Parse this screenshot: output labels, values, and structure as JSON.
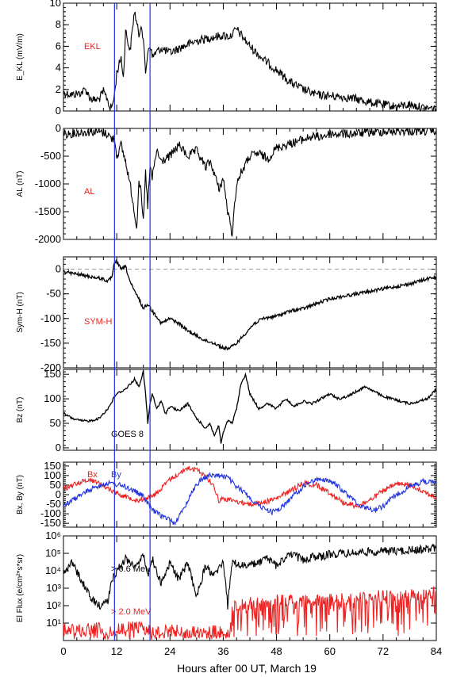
{
  "xaxis": {
    "label": "Hours after 00 UT, March 19",
    "range": [
      0,
      84
    ],
    "ticks": [
      0,
      12,
      24,
      36,
      48,
      60,
      72,
      84
    ],
    "tick_labels": [
      "0",
      "12",
      "24",
      "36",
      "48",
      "60",
      "72",
      "84"
    ]
  },
  "event_lines": {
    "hours": [
      11.5,
      19.5
    ],
    "color": "#2233dd"
  },
  "chart_data": [
    {
      "type": "line",
      "ylabel": "E_KL (mV/m)",
      "ylim": [
        0,
        10
      ],
      "yticks": [
        0,
        2,
        4,
        6,
        8,
        10
      ],
      "annotation": {
        "text": "EKL",
        "color": "#ee2222"
      },
      "series": [
        {
          "color": "#000000",
          "style": "noisy",
          "x": [
            0,
            2,
            4,
            5,
            6,
            7,
            8,
            9,
            10,
            10.5,
            11,
            11.5,
            12,
            13,
            13.5,
            14,
            15,
            16,
            17,
            17.5,
            18,
            18.5,
            19,
            19.5,
            20,
            21,
            22,
            24,
            27,
            30,
            33,
            36,
            37.5,
            39,
            40.5,
            42,
            45,
            48,
            51,
            54,
            57,
            60,
            63,
            66,
            69,
            72,
            75,
            78,
            81,
            84
          ],
          "y": [
            1.7,
            1.5,
            1.7,
            2.0,
            1.2,
            1.0,
            1.1,
            1.8,
            1.0,
            0.2,
            0.5,
            1.5,
            3.5,
            5.0,
            3.0,
            7.5,
            5.5,
            9.3,
            7.0,
            8.2,
            6.5,
            3.5,
            5.5,
            6.2,
            5.0,
            5.5,
            5.8,
            5.4,
            6.0,
            6.5,
            6.8,
            7.0,
            6.9,
            7.6,
            6.8,
            6.0,
            4.8,
            3.8,
            2.7,
            2.0,
            1.5,
            1.4,
            1.3,
            1.1,
            0.8,
            0.6,
            0.4,
            0.6,
            0.3,
            0.2
          ]
        }
      ]
    },
    {
      "type": "line",
      "ylabel": "AL (nT)",
      "ylim": [
        -2000,
        0
      ],
      "yticks": [
        -2000,
        -1500,
        -1000,
        -500,
        0
      ],
      "annotation": {
        "text": "AL",
        "color": "#ee2222"
      },
      "series": [
        {
          "color": "#000000",
          "style": "noisy",
          "x": [
            0,
            3,
            6,
            8,
            10,
            11,
            11.5,
            12,
            13,
            14,
            15,
            16,
            16.5,
            17,
            17.5,
            18,
            18.5,
            19,
            19.5,
            20,
            21,
            22,
            24,
            26,
            28,
            30,
            32,
            33,
            34,
            35,
            36,
            37,
            38,
            39,
            40,
            42,
            44,
            46,
            48,
            50,
            52,
            54,
            56,
            58,
            60,
            64,
            68,
            72,
            76,
            80,
            84
          ],
          "y": [
            -100,
            -80,
            -60,
            -60,
            -100,
            -200,
            -150,
            -500,
            -300,
            -600,
            -1000,
            -1500,
            -1800,
            -900,
            -1200,
            -1700,
            -800,
            -1400,
            -700,
            -900,
            -400,
            -600,
            -500,
            -300,
            -500,
            -400,
            -700,
            -600,
            -800,
            -1100,
            -900,
            -1500,
            -1900,
            -1000,
            -800,
            -500,
            -450,
            -550,
            -350,
            -300,
            -250,
            -200,
            -150,
            -150,
            -100,
            -100,
            -80,
            -60,
            -50,
            -50,
            -40
          ]
        }
      ]
    },
    {
      "type": "line",
      "ylabel": "Sym-H (nT)",
      "ylim": [
        -200,
        25
      ],
      "yticks": [
        -200,
        -150,
        -100,
        -50,
        0
      ],
      "zero_line": true,
      "annotation": {
        "text": "SYM-H",
        "color": "#ee2222"
      },
      "series": [
        {
          "color": "#000000",
          "style": "smooth",
          "x": [
            0,
            3,
            6,
            9,
            10,
            11,
            11.5,
            12,
            13,
            14,
            15,
            16,
            17,
            18,
            19,
            20,
            21,
            22,
            24,
            26,
            28,
            30,
            32,
            34,
            36,
            37.5,
            39,
            41,
            43,
            45,
            48,
            51,
            54,
            57,
            60,
            63,
            66,
            69,
            72,
            75,
            78,
            81,
            84
          ],
          "y": [
            -5,
            -10,
            -15,
            -20,
            -25,
            -15,
            15,
            15,
            0,
            5,
            -25,
            -45,
            -60,
            -80,
            -70,
            -85,
            -95,
            -110,
            -100,
            -110,
            -125,
            -135,
            -145,
            -150,
            -160,
            -160,
            -150,
            -130,
            -110,
            -100,
            -95,
            -85,
            -80,
            -70,
            -60,
            -55,
            -50,
            -45,
            -40,
            -35,
            -30,
            -22,
            -15
          ]
        }
      ]
    },
    {
      "type": "line",
      "ylabel": "Bz (nT)",
      "ylim": [
        -5,
        160
      ],
      "yticks": [
        0,
        50,
        100,
        150
      ],
      "annotation": {
        "text": "GOES 8",
        "color": "#000000"
      },
      "series": [
        {
          "color": "#000000",
          "style": "smooth",
          "x": [
            0,
            2,
            4,
            6,
            8,
            9,
            10,
            11,
            11.5,
            12,
            13,
            14,
            15,
            16,
            17,
            18,
            18.5,
            19,
            19.5,
            20,
            21,
            22,
            23,
            24,
            26,
            28,
            30,
            32,
            33,
            34,
            35,
            35.5,
            36,
            37,
            38,
            39,
            40,
            41,
            42,
            44,
            46,
            48,
            50,
            52,
            54,
            56,
            58,
            60,
            62,
            64,
            66,
            68,
            70,
            72,
            74,
            76,
            78,
            80,
            82,
            84
          ],
          "y": [
            70,
            60,
            55,
            55,
            60,
            70,
            80,
            95,
            105,
            110,
            115,
            120,
            130,
            140,
            125,
            155,
            110,
            50,
            90,
            110,
            80,
            95,
            70,
            85,
            75,
            90,
            60,
            40,
            50,
            25,
            45,
            10,
            30,
            55,
            50,
            80,
            130,
            150,
            110,
            80,
            90,
            80,
            100,
            85,
            95,
            90,
            100,
            110,
            100,
            105,
            115,
            125,
            115,
            105,
            100,
            95,
            90,
            95,
            100,
            120
          ]
        }
      ]
    },
    {
      "type": "line",
      "ylabel": "Bx, By (nT)",
      "ylim": [
        -170,
        170
      ],
      "yticks": [
        -150,
        -100,
        -50,
        0,
        50,
        100,
        150
      ],
      "legend": [
        {
          "name": "Bx",
          "color": "#ee2222"
        },
        {
          "name": "By",
          "color": "#2233dd"
        }
      ],
      "series": [
        {
          "name": "Bx",
          "color": "#ee2222",
          "style": "noisy",
          "x": [
            0,
            3,
            6,
            8,
            11,
            14,
            17,
            20,
            22,
            24,
            26,
            28,
            30,
            32,
            34,
            35,
            36,
            38,
            40,
            42,
            45,
            48,
            51,
            54,
            57,
            60,
            63,
            66,
            69,
            72,
            75,
            78,
            81,
            84
          ],
          "y": [
            30,
            60,
            80,
            60,
            20,
            -10,
            -30,
            -10,
            30,
            80,
            110,
            140,
            130,
            100,
            40,
            -30,
            -20,
            -30,
            -40,
            -50,
            -40,
            -20,
            20,
            60,
            50,
            10,
            -40,
            -60,
            -30,
            20,
            55,
            50,
            20,
            -20
          ]
        },
        {
          "name": "By",
          "color": "#2233dd",
          "style": "noisy",
          "x": [
            0,
            2,
            4,
            7,
            10,
            13,
            16,
            18,
            20,
            22,
            24,
            25,
            27,
            29,
            31,
            33,
            35,
            37,
            39,
            41,
            43,
            45,
            47,
            49,
            52,
            55,
            58,
            61,
            64,
            67,
            70,
            72,
            75,
            78,
            81,
            84
          ],
          "y": [
            -60,
            -30,
            0,
            40,
            60,
            50,
            20,
            -10,
            -80,
            -110,
            -130,
            -150,
            -80,
            20,
            80,
            100,
            100,
            90,
            40,
            10,
            -40,
            -70,
            -90,
            -70,
            0,
            60,
            85,
            60,
            0,
            -60,
            -80,
            -60,
            0,
            40,
            70,
            60
          ]
        }
      ]
    },
    {
      "type": "line",
      "ylabel": "El Flux (e/cm²*s*sr)",
      "yscale": "log",
      "ylim": [
        1,
        1000000
      ],
      "yticks": [
        10,
        100,
        1000,
        10000,
        100000,
        1000000
      ],
      "ytick_labels": [
        "10¹",
        "10²",
        "10³",
        "10⁴",
        "10⁵",
        "10⁶"
      ],
      "series": [
        {
          "name": "> 0.6 MeV",
          "color": "#000000",
          "style": "noisy",
          "x": [
            0,
            2,
            4,
            6,
            8,
            10,
            11,
            12,
            13,
            14,
            16,
            18,
            19,
            20,
            22,
            24,
            26,
            28,
            30,
            32,
            34,
            36,
            37,
            38,
            40,
            42,
            44,
            46,
            48,
            50,
            52,
            54,
            56,
            58,
            60,
            64,
            68,
            72,
            76,
            80,
            84
          ],
          "y": [
            10000,
            30000,
            3000,
            300,
            100,
            200,
            3000,
            10000,
            20000,
            50000,
            20000,
            70000,
            5000,
            50000,
            2000,
            30000,
            3000,
            30000,
            300,
            20000,
            5000,
            40000,
            100,
            30000,
            20000,
            20000,
            30000,
            50000,
            20000,
            60000,
            80000,
            40000,
            70000,
            60000,
            90000,
            100000,
            120000,
            130000,
            140000,
            160000,
            200000
          ]
        },
        {
          "name": "> 2.0 MeV",
          "color": "#ee2222",
          "style": "spiky",
          "x": [
            0,
            4,
            8,
            10,
            12,
            14,
            16,
            18,
            20,
            24,
            28,
            32,
            36,
            37.5,
            38,
            40,
            44,
            48,
            52,
            56,
            60,
            64,
            68,
            72,
            76,
            80,
            84
          ],
          "y": [
            5,
            4,
            5,
            3,
            4,
            5,
            6,
            5,
            3,
            4,
            3,
            4,
            3,
            3,
            80,
            120,
            150,
            200,
            200,
            180,
            220,
            250,
            300,
            350,
            350,
            400,
            700
          ]
        }
      ],
      "annotations": [
        {
          "text": "> 0.6 MeV",
          "color": "#000000"
        },
        {
          "text": "> 2.0 MeV",
          "color": "#ee2222"
        }
      ]
    }
  ]
}
